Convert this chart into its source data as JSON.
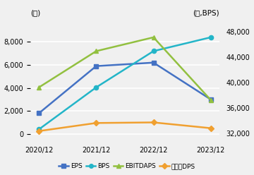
{
  "years": [
    "2020/12",
    "2021/12",
    "2022/12",
    "2023/12"
  ],
  "EPS": [
    1800,
    5900,
    6200,
    3000
  ],
  "BPS": [
    400,
    4050,
    7200,
    8400
  ],
  "EBITDAPS": [
    4050,
    7200,
    8400,
    2950
  ],
  "DPS": [
    250,
    950,
    1000,
    500
  ],
  "left_ylim": [
    -500,
    10000
  ],
  "left_yticks": [
    0,
    2000,
    4000,
    6000,
    8000
  ],
  "right_ylim": [
    31000,
    50000
  ],
  "right_yticks": [
    32000,
    36000,
    40000,
    44000,
    48000
  ],
  "color_EPS": "#4472c4",
  "color_BPS": "#23b5c8",
  "color_EBITDAPS": "#92c040",
  "color_DPS": "#f0a030",
  "ylabel_left": "(원)",
  "ylabel_right": "(원,BPS)",
  "legend_labels": [
    "EPS",
    "BPS",
    "EBITDAPS",
    "보통주DPS"
  ],
  "marker_EPS": "s",
  "marker_BPS": "o",
  "marker_EBITDAPS": "^",
  "marker_DPS": "D",
  "bg_color": "#f0f0f0",
  "grid_color": "#ffffff"
}
